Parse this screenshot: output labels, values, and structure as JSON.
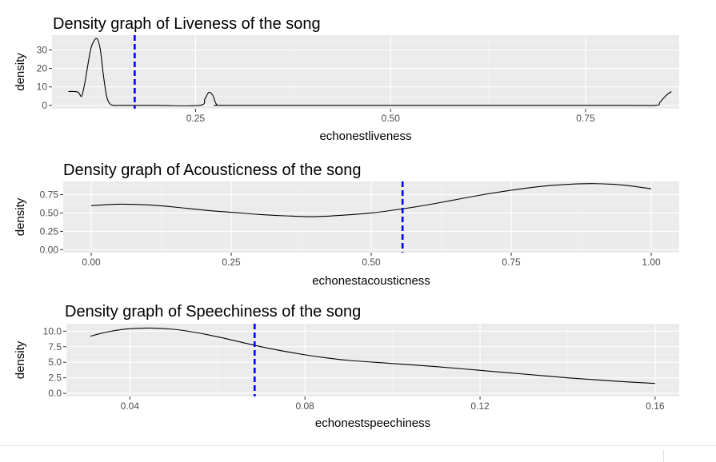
{
  "chart_data": [
    {
      "type": "line",
      "title": "Density graph of Liveness of the song",
      "xlabel": "echonestliveness",
      "ylabel": "density",
      "xlim": [
        0.066,
        0.87
      ],
      "ylim": [
        -1.8,
        38
      ],
      "x_ticks": [
        0.25,
        0.5,
        0.75
      ],
      "x_tick_labels": [
        "0.25",
        "0.50",
        "0.75"
      ],
      "y_ticks": [
        0,
        10,
        20,
        30
      ],
      "y_tick_labels": [
        "0",
        "10",
        "20",
        "30"
      ],
      "grid": true,
      "series": [
        {
          "x": [
            0.087,
            0.095,
            0.1,
            0.104,
            0.108,
            0.112,
            0.116,
            0.12,
            0.124,
            0.128,
            0.132,
            0.136,
            0.14,
            0.145,
            0.15,
            0.2,
            0.255,
            0.262,
            0.267,
            0.272,
            0.277,
            0.285,
            0.4,
            0.6,
            0.8,
            0.84,
            0.845,
            0.85,
            0.855,
            0.86
          ],
          "y": [
            7.5,
            7.5,
            7.0,
            5.0,
            12,
            22,
            31,
            35,
            36,
            30,
            16,
            5,
            1,
            0,
            0,
            0,
            0,
            3.5,
            7,
            5.5,
            0.5,
            0,
            0,
            0,
            0,
            0,
            1.5,
            4,
            6,
            7.5
          ]
        }
      ],
      "mean_line": {
        "x": 0.172,
        "color": "#0000ff",
        "style": "dashed"
      }
    },
    {
      "type": "line",
      "title": "Density graph of Acousticness of the song",
      "xlabel": "echonestacousticness",
      "ylabel": "density",
      "xlim": [
        -0.05,
        1.05
      ],
      "ylim": [
        -0.04,
        0.93
      ],
      "x_ticks": [
        0,
        0.25,
        0.5,
        0.75,
        1.0
      ],
      "x_tick_labels": [
        "0.00",
        "0.25",
        "0.50",
        "0.75",
        "1.00"
      ],
      "y_ticks": [
        0,
        0.25,
        0.5,
        0.75
      ],
      "y_tick_labels": [
        "0.00",
        "0.25",
        "0.50",
        "0.75"
      ],
      "grid": true,
      "series": [
        {
          "x": [
            0,
            0.05,
            0.1,
            0.15,
            0.2,
            0.25,
            0.3,
            0.35,
            0.4,
            0.45,
            0.5,
            0.55,
            0.6,
            0.65,
            0.7,
            0.75,
            0.8,
            0.85,
            0.9,
            0.95,
            1.0
          ],
          "y": [
            0.6,
            0.62,
            0.61,
            0.58,
            0.54,
            0.51,
            0.48,
            0.46,
            0.45,
            0.47,
            0.5,
            0.55,
            0.61,
            0.68,
            0.75,
            0.81,
            0.86,
            0.89,
            0.9,
            0.88,
            0.83
          ]
        }
      ],
      "mean_line": {
        "x": 0.556,
        "color": "#0000ff",
        "style": "dashed"
      }
    },
    {
      "type": "line",
      "title": "Density graph of Speechiness of the song",
      "xlabel": "echonestspeechiness",
      "ylabel": "density",
      "xlim": [
        0.0255,
        0.1655
      ],
      "ylim": [
        -0.5,
        11.2
      ],
      "x_ticks": [
        0.04,
        0.08,
        0.12,
        0.16
      ],
      "x_tick_labels": [
        "0.04",
        "0.08",
        "0.12",
        "0.16"
      ],
      "y_ticks": [
        0,
        2.5,
        5,
        7.5,
        10
      ],
      "y_tick_labels": [
        "0.0",
        "2.5",
        "5.0",
        "7.5",
        "10.0"
      ],
      "grid": true,
      "series": [
        {
          "x": [
            0.031,
            0.035,
            0.04,
            0.045,
            0.05,
            0.055,
            0.06,
            0.065,
            0.07,
            0.075,
            0.08,
            0.085,
            0.09,
            0.1,
            0.11,
            0.12,
            0.13,
            0.14,
            0.15,
            0.16
          ],
          "y": [
            9.2,
            9.9,
            10.4,
            10.5,
            10.3,
            9.8,
            9.1,
            8.3,
            7.5,
            6.8,
            6.2,
            5.7,
            5.3,
            4.8,
            4.3,
            3.7,
            3.1,
            2.5,
            2.0,
            1.6
          ]
        }
      ],
      "mean_line": {
        "x": 0.0685,
        "color": "#0000ff",
        "style": "dashed"
      }
    }
  ],
  "colors": {
    "panel_bg": "#ebebeb",
    "grid_major": "#ffffff",
    "curve": "#000000",
    "mean_line": "#0000ff",
    "tick_text": "#4d4d4d"
  }
}
